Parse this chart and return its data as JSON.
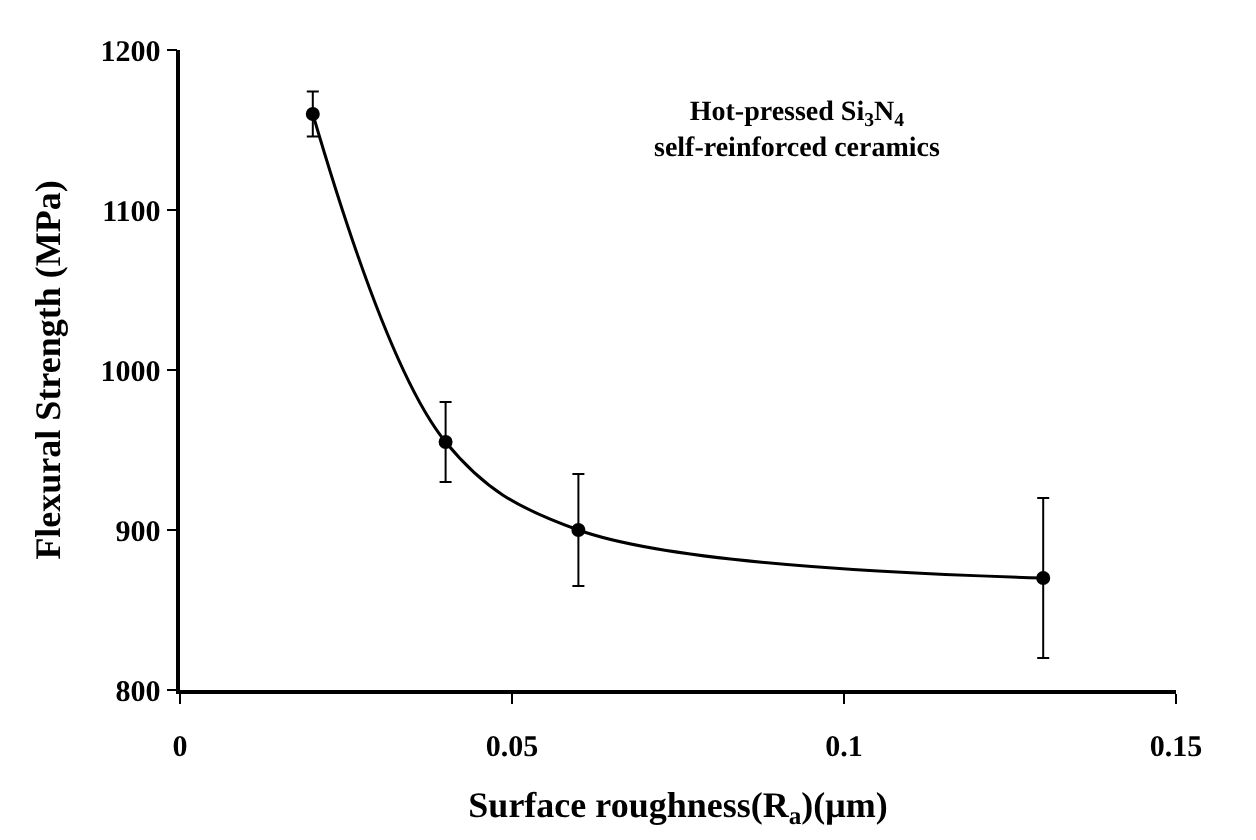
{
  "chart_data": {
    "type": "line",
    "xlabel": "Surface roughness(R$_{a}$)(μm)",
    "ylabel": "Flexural Strength (MPa)",
    "annotations": [
      "Hot-pressed Si$_{3}$N$_{4}$\nself-reinforced ceramics"
    ],
    "x": [
      0.02,
      0.04,
      0.06,
      0.13
    ],
    "series": [
      {
        "color": "#000000",
        "values": [
          1160,
          955,
          900,
          870
        ],
        "errors": [
          14,
          25,
          35,
          50
        ]
      }
    ],
    "xlim": [
      0,
      0.15
    ],
    "xticks": [
      0,
      0.05,
      0.1,
      0.15
    ],
    "ylim": [
      800,
      1200
    ],
    "yticks": [
      800,
      900,
      1000,
      1100,
      1200
    ],
    "marker": "circle",
    "line_style": "solid",
    "legend": false
  }
}
